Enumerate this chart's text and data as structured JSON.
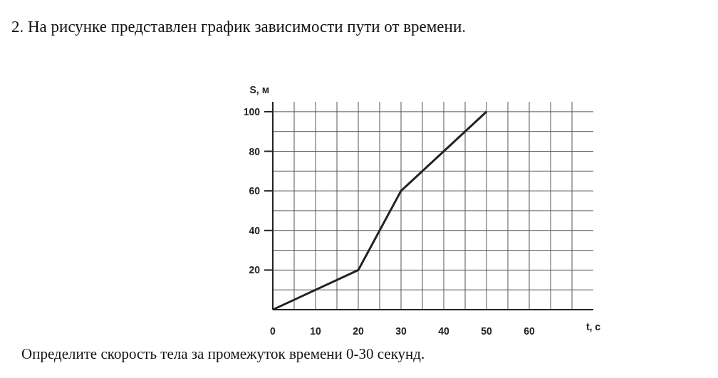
{
  "chart_data": {
    "type": "line",
    "title": "2. На рисунке представлен график зависимости пути от времени.",
    "xlabel": "t, c",
    "ylabel": "S, м",
    "x": [
      0,
      20,
      30,
      50
    ],
    "series": [
      {
        "color": "#222222",
        "values": [
          0,
          20,
          60,
          100
        ]
      }
    ],
    "xlim": [
      0,
      75
    ],
    "ylim": [
      0,
      105
    ],
    "xticks": [
      0,
      {
        "value": 5,
        "label": null
      },
      10,
      {
        "value": 15,
        "label": null
      },
      20,
      {
        "value": 25,
        "label": null
      },
      30,
      {
        "value": 35,
        "label": null
      },
      40,
      {
        "value": 45,
        "label": null
      },
      50,
      {
        "value": 55,
        "label": null
      },
      60,
      {
        "value": 65,
        "label": null
      },
      {
        "value": 70,
        "label": null
      }
    ],
    "yticks": [
      {
        "value": 10,
        "label": null
      },
      20,
      {
        "value": 30,
        "label": null
      },
      40,
      {
        "value": 50,
        "label": null
      },
      60,
      {
        "value": 70,
        "label": null
      },
      80,
      {
        "value": 90,
        "label": null
      },
      100
    ],
    "grid": true,
    "marker": "none",
    "line_style": "solid",
    "annotations": [
      "Определите скорость тела за промежуток времени 0-30 секунд."
    ]
  }
}
